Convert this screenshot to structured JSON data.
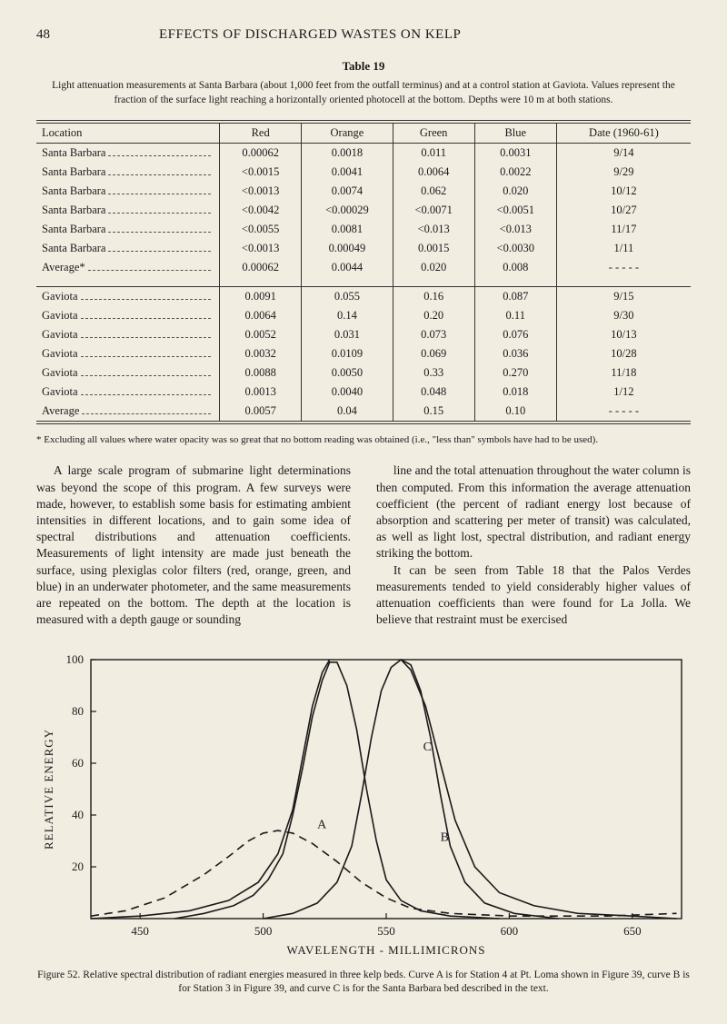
{
  "page_number": "48",
  "page_title": "EFFECTS OF DISCHARGED WASTES ON KELP",
  "table": {
    "number": "Table 19",
    "caption": "Light attenuation measurements at Santa Barbara (about 1,000 feet from the outfall terminus) and at a control station at Gaviota. Values represent the fraction of the surface light reaching a horizontally oriented photocell at the bottom. Depths were 10 m at both stations.",
    "columns": [
      "Location",
      "Red",
      "Orange",
      "Green",
      "Blue",
      "Date (1960-61)"
    ],
    "section1": [
      [
        "Santa Barbara",
        "0.00062",
        "0.0018",
        "0.011",
        "0.0031",
        "9/14"
      ],
      [
        "Santa Barbara",
        "<0.0015",
        "0.0041",
        "0.0064",
        "0.0022",
        "9/29"
      ],
      [
        "Santa Barbara",
        "<0.0013",
        "0.0074",
        "0.062",
        "0.020",
        "10/12"
      ],
      [
        "Santa Barbara",
        "<0.0042",
        "<0.00029",
        "<0.0071",
        "<0.0051",
        "10/27"
      ],
      [
        "Santa Barbara",
        "<0.0055",
        "0.0081",
        "<0.013",
        "<0.013",
        "11/17"
      ],
      [
        "Santa Barbara",
        "<0.0013",
        "0.00049",
        "0.0015",
        "<0.0030",
        "1/11"
      ],
      [
        "Average*",
        "0.00062",
        "0.0044",
        "0.020",
        "0.008",
        "- - - - -"
      ]
    ],
    "section2": [
      [
        "Gaviota",
        "0.0091",
        "0.055",
        "0.16",
        "0.087",
        "9/15"
      ],
      [
        "Gaviota",
        "0.0064",
        "0.14",
        "0.20",
        "0.11",
        "9/30"
      ],
      [
        "Gaviota",
        "0.0052",
        "0.031",
        "0.073",
        "0.076",
        "10/13"
      ],
      [
        "Gaviota",
        "0.0032",
        "0.0109",
        "0.069",
        "0.036",
        "10/28"
      ],
      [
        "Gaviota",
        "0.0088",
        "0.0050",
        "0.33",
        "0.270",
        "11/18"
      ],
      [
        "Gaviota",
        "0.0013",
        "0.0040",
        "0.048",
        "0.018",
        "1/12"
      ],
      [
        "Average",
        "0.0057",
        "0.04",
        "0.15",
        "0.10",
        "- - - - -"
      ]
    ]
  },
  "footnote": "* Excluding all values where water opacity was so great that no bottom reading was obtained (i.e., \"less than\" symbols have had to be used).",
  "body": {
    "p1": "A large scale program of submarine light determinations was beyond the scope of this program. A few surveys were made, however, to establish some basis for estimating ambient intensities in different locations, and to gain some idea of spectral distributions and attenuation coefficients. Measurements of light intensity are made just beneath the surface, using plexiglas color filters (red, orange, green, and blue) in an underwater photometer, and the same measurements are repeated on the bottom. The depth at the location is measured with a depth gauge or sounding",
    "p2": "line and the total attenuation throughout the water column is then computed. From this information the average attenuation coefficient (the percent of radiant energy lost because of absorption and scattering per meter of transit) was calculated, as well as light lost, spectral distribution, and radiant energy striking the bottom.",
    "p3": "It can be seen from Table 18 that the Palos Verdes measurements tended to yield considerably higher values of attenuation coefficients than were found for La Jolla. We believe that restraint must be exercised"
  },
  "chart": {
    "type": "line",
    "xlabel": "WAVELENGTH - MILLIMICRONS",
    "ylabel": "RELATIVE ENERGY",
    "xlim": [
      430,
      670
    ],
    "ylim": [
      0,
      100
    ],
    "xticks": [
      450,
      500,
      550,
      600,
      650
    ],
    "yticks": [
      20,
      40,
      60,
      80,
      100
    ],
    "background_color": "#f2ede1",
    "axis_color": "#1a1a1a",
    "line_color": "#1a1a1a",
    "line_width": 1.6,
    "label_fontsize": 13,
    "tick_fontsize": 13,
    "series": {
      "A": {
        "label": "A",
        "label_pos": [
          522,
          35
        ],
        "points": [
          [
            464,
            0
          ],
          [
            476,
            2
          ],
          [
            488,
            5
          ],
          [
            496,
            9
          ],
          [
            502,
            15
          ],
          [
            508,
            25
          ],
          [
            512,
            40
          ],
          [
            516,
            58
          ],
          [
            520,
            78
          ],
          [
            524,
            92
          ],
          [
            527,
            99
          ],
          [
            530,
            99
          ],
          [
            534,
            90
          ],
          [
            538,
            73
          ],
          [
            542,
            50
          ],
          [
            546,
            30
          ],
          [
            550,
            15
          ],
          [
            556,
            7
          ],
          [
            564,
            3
          ],
          [
            576,
            1
          ],
          [
            596,
            0
          ]
        ]
      },
      "B": {
        "label": "B",
        "label_pos": [
          572,
          30
        ],
        "style": "dashed",
        "points": [
          [
            430,
            1
          ],
          [
            444,
            3
          ],
          [
            460,
            8
          ],
          [
            476,
            17
          ],
          [
            486,
            24
          ],
          [
            494,
            30
          ],
          [
            500,
            33
          ],
          [
            506,
            34
          ],
          [
            512,
            33
          ],
          [
            520,
            29
          ],
          [
            530,
            22
          ],
          [
            540,
            14
          ],
          [
            550,
            8
          ],
          [
            560,
            4
          ],
          [
            576,
            2
          ],
          [
            600,
            1
          ],
          [
            640,
            1
          ],
          [
            668,
            2
          ]
        ]
      },
      "C": {
        "label": "C",
        "label_pos": [
          565,
          65
        ],
        "points": [
          [
            500,
            0
          ],
          [
            512,
            2
          ],
          [
            522,
            6
          ],
          [
            530,
            14
          ],
          [
            536,
            28
          ],
          [
            540,
            48
          ],
          [
            544,
            70
          ],
          [
            548,
            88
          ],
          [
            552,
            97
          ],
          [
            556,
            100
          ],
          [
            560,
            98
          ],
          [
            564,
            88
          ],
          [
            568,
            70
          ],
          [
            572,
            48
          ],
          [
            576,
            28
          ],
          [
            582,
            14
          ],
          [
            590,
            6
          ],
          [
            602,
            2
          ],
          [
            620,
            0
          ]
        ]
      },
      "outer_left": {
        "points": [
          [
            430,
            0
          ],
          [
            450,
            1
          ],
          [
            470,
            3
          ],
          [
            486,
            7
          ],
          [
            498,
            14
          ],
          [
            506,
            25
          ],
          [
            512,
            42
          ],
          [
            516,
            62
          ],
          [
            520,
            82
          ],
          [
            524,
            95
          ],
          [
            527,
            100
          ]
        ]
      },
      "outer_right": {
        "points": [
          [
            556,
            100
          ],
          [
            560,
            96
          ],
          [
            566,
            82
          ],
          [
            572,
            60
          ],
          [
            578,
            38
          ],
          [
            586,
            20
          ],
          [
            596,
            10
          ],
          [
            610,
            5
          ],
          [
            628,
            2
          ],
          [
            650,
            1
          ],
          [
            668,
            0
          ]
        ]
      }
    }
  },
  "figure_caption": "Figure 52.  Relative spectral distribution of radiant energies measured in three kelp beds. Curve A is for Station 4 at Pt. Loma shown in Figure 39, curve B is for Station 3 in Figure 39, and curve C is for the Santa Barbara bed described in the text."
}
